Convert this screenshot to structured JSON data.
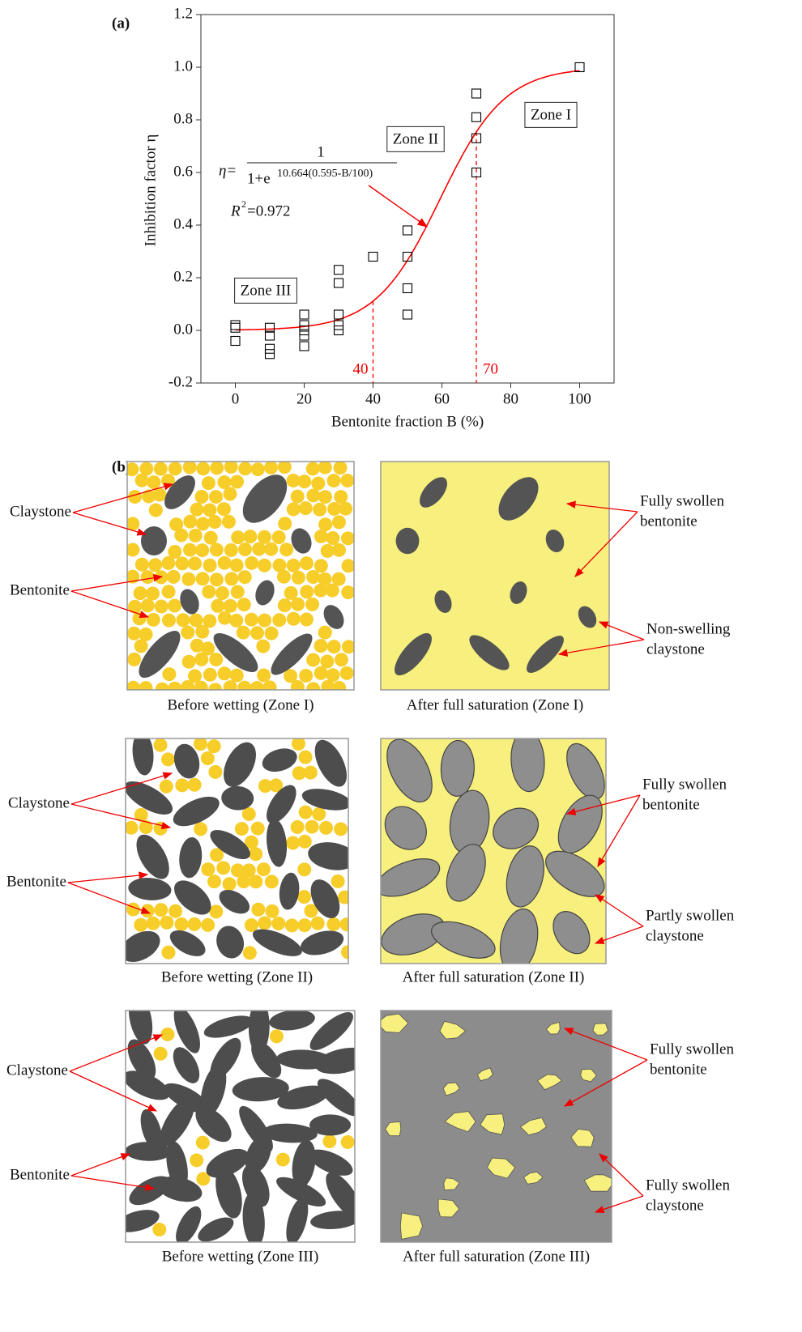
{
  "chart_data": {
    "type": "scatter",
    "panel_label": "(a)",
    "x_label": "Bentonite fraction B (%)",
    "y_label": "Inhibition factor η",
    "x": [
      0,
      0,
      0,
      10,
      10,
      10,
      10,
      20,
      20,
      20,
      20,
      20,
      30,
      30,
      30,
      30,
      30,
      40,
      50,
      50,
      50,
      50,
      70,
      70,
      70,
      70,
      100
    ],
    "values": [
      0.02,
      0.01,
      -0.04,
      0.01,
      -0.02,
      -0.07,
      -0.09,
      0.06,
      0.02,
      0.0,
      -0.02,
      -0.06,
      0.23,
      0.18,
      0.06,
      0.02,
      0.0,
      0.28,
      0.38,
      0.28,
      0.16,
      0.06,
      0.9,
      0.81,
      0.73,
      0.6,
      1.0
    ],
    "marker_color": "#000000",
    "xlim": [
      -10,
      110
    ],
    "xticks": [
      0,
      20,
      40,
      60,
      80,
      100
    ],
    "ylim": [
      -0.2,
      1.2
    ],
    "yticks": [
      -0.2,
      {
        "value": 0,
        "label": "0.0"
      },
      0.2,
      0.4,
      0.6,
      0.8,
      {
        "value": 1,
        "label": "1.0"
      },
      1.2
    ],
    "fit": {
      "k": 10.664,
      "x0": 0.595,
      "xrange": [
        0,
        100
      ],
      "color": "#ff0000"
    },
    "equation": {
      "lhs": "η=",
      "numerator": "1",
      "denominator": "1+e",
      "exponent": "10.664(0.595-B/100)"
    },
    "r2": {
      "symbol": "R",
      "power": "2",
      "rest": "=0.972"
    },
    "markers": [
      40,
      70
    ],
    "zones": [
      "Zone I",
      "Zone II",
      "Zone III"
    ]
  },
  "panel_b": {
    "label": "(b)",
    "rows": [
      {
        "before": "Before wetting (Zone I)",
        "after": "After full saturation (Zone I)",
        "left_labels": [
          "Claystone",
          "Bentonite"
        ],
        "right_labels": [
          [
            "Fully swollen",
            "bentonite"
          ],
          [
            "Non-swelling",
            "claystone"
          ]
        ]
      },
      {
        "before": "Before wetting (Zone II)",
        "after": "After full saturation (Zone II)",
        "left_labels": [
          "Claystone",
          "Bentonite"
        ],
        "right_labels": [
          [
            "Fully swollen",
            "bentonite"
          ],
          [
            "Partly swollen",
            "claystone"
          ]
        ]
      },
      {
        "before": "Before wetting (Zone III)",
        "after": "After full saturation (Zone III)",
        "left_labels": [
          "Claystone",
          "Bentonite"
        ],
        "right_labels": [
          [
            "Fully swollen",
            "bentonite"
          ],
          [
            "Fully swollen",
            "claystone"
          ]
        ]
      }
    ]
  }
}
